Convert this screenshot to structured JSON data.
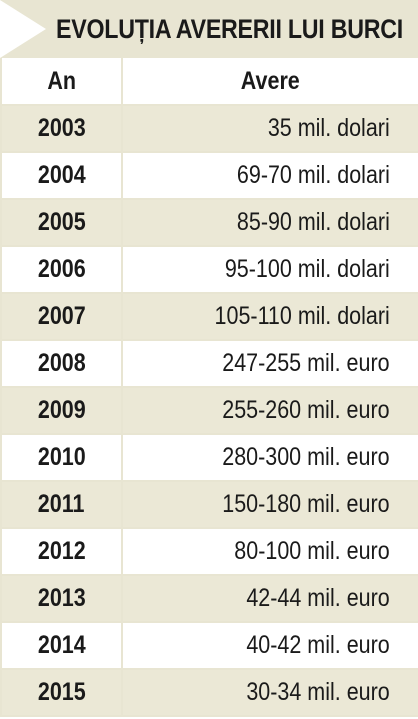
{
  "title": "EVOLUȚIA AVERERII LUI BURCI",
  "colors": {
    "band": "#ebe8d6",
    "title_bg": "#e8e5d2",
    "text": "#1a1a1a"
  },
  "chart_data": {
    "type": "table",
    "title": "EVOLUȚIA AVERERII LUI BURCI",
    "columns": [
      "An",
      "Avere"
    ],
    "rows": [
      [
        "2003",
        "35 mil. dolari"
      ],
      [
        "2004",
        "69-70 mil. dolari"
      ],
      [
        "2005",
        "85-90 mil. dolari"
      ],
      [
        "2006",
        "95-100 mil. dolari"
      ],
      [
        "2007",
        "105-110 mil. dolari"
      ],
      [
        "2008",
        "247-255 mil. euro"
      ],
      [
        "2009",
        "255-260 mil. euro"
      ],
      [
        "2010",
        "280-300 mil. euro"
      ],
      [
        "2011",
        "150-180 mil. euro"
      ],
      [
        "2012",
        "80-100 mil. euro"
      ],
      [
        "2013",
        "42-44 mil. euro"
      ],
      [
        "2014",
        "40-42 mil. euro"
      ],
      [
        "2015",
        "30-34 mil. euro"
      ]
    ]
  }
}
